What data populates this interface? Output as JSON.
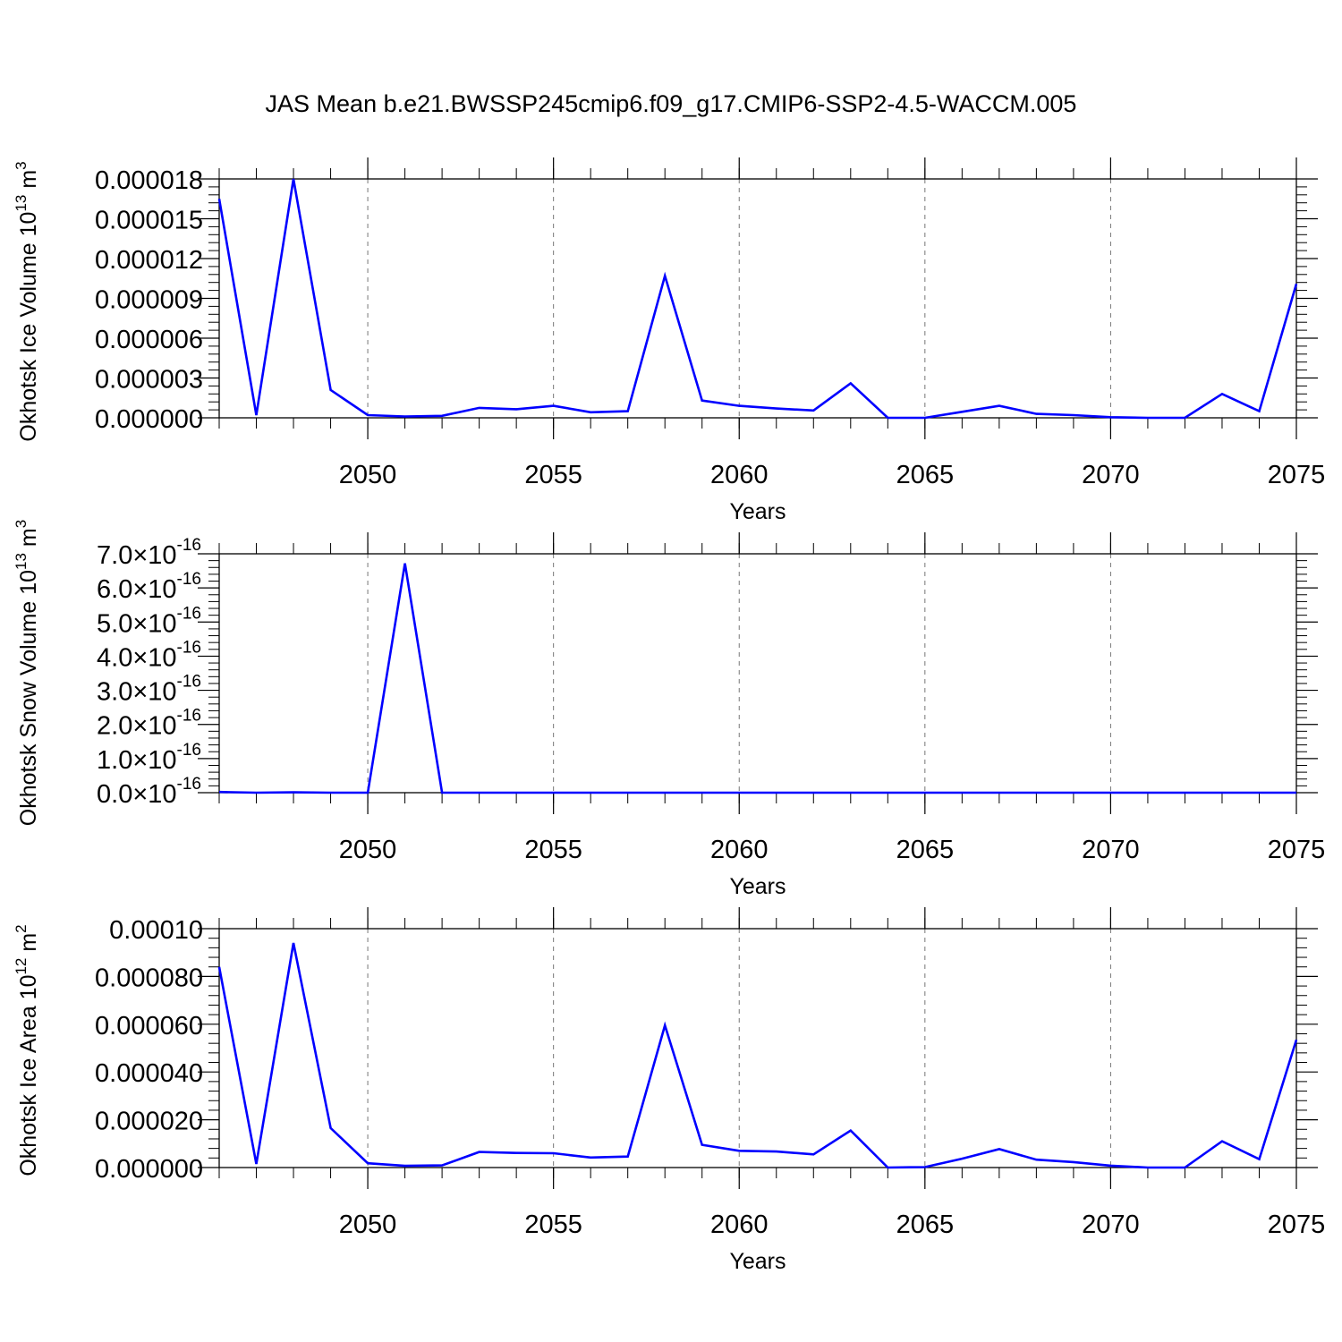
{
  "figure": {
    "title": "JAS Mean b.e21.BWSSP245cmip6.f09_g17.CMIP6-SSP2-4.5-WACCM.005",
    "line_color": "#0000ff"
  },
  "chart_data": [
    {
      "type": "line",
      "ylabel": "Okhotsk Ice Volume 10",
      "ylabel_sup": "13",
      "ylabel_unit": "m",
      "ylabel_unit_sup": "3",
      "xlabel": "Years",
      "xlim": [
        2046,
        2075
      ],
      "ylim": [
        0,
        1.8e-05
      ],
      "x_ticks": [
        2050,
        2055,
        2060,
        2065,
        2070,
        2075
      ],
      "x_tick_labels": [
        "2050",
        "2055",
        "2060",
        "2065",
        "2070",
        "2075"
      ],
      "y_ticks": [
        0,
        3e-06,
        6e-06,
        9e-06,
        1.2e-05,
        1.5e-05,
        1.8e-05
      ],
      "y_tick_labels": [
        "0.000000",
        "0.000003",
        "0.000006",
        "0.000009",
        "0.000012",
        "0.000015",
        "0.000018"
      ],
      "y_tick_exp_labels": [],
      "grid": "vertical dashed at major x ticks",
      "x": [
        2046,
        2047,
        2048,
        2049,
        2050,
        2051,
        2052,
        2053,
        2054,
        2055,
        2056,
        2057,
        2058,
        2059,
        2060,
        2061,
        2062,
        2063,
        2064,
        2065,
        2066,
        2067,
        2068,
        2069,
        2070,
        2071,
        2072,
        2073,
        2074,
        2075
      ],
      "y": [
        1.65e-05,
        2e-07,
        1.8e-05,
        2.1e-06,
        2e-07,
        1e-07,
        1.5e-07,
        7.5e-07,
        6.5e-07,
        9e-07,
        4.2e-07,
        5e-07,
        1.07e-05,
        1.3e-06,
        9e-07,
        7e-07,
        5.5e-07,
        2.6e-06,
        0.0,
        0.0,
        4.5e-07,
        9e-07,
        3e-07,
        2e-07,
        5e-08,
        0.0,
        0.0,
        1.8e-06,
        5e-07,
        1.01e-05
      ]
    },
    {
      "type": "line",
      "ylabel": "Okhotsk Snow Volume 10",
      "ylabel_sup": "13",
      "ylabel_unit": "m",
      "ylabel_unit_sup": "3",
      "xlabel": "Years",
      "xlim": [
        2046,
        2075
      ],
      "ylim": [
        0,
        7e-16
      ],
      "x_ticks": [
        2050,
        2055,
        2060,
        2065,
        2070,
        2075
      ],
      "x_tick_labels": [
        "2050",
        "2055",
        "2060",
        "2065",
        "2070",
        "2075"
      ],
      "y_ticks": [
        0,
        1e-16,
        2e-16,
        3e-16,
        4e-16,
        5e-16,
        6e-16,
        7e-16
      ],
      "y_tick_labels": [
        "0.0",
        "1.0",
        "2.0",
        "3.0",
        "4.0",
        "5.0",
        "6.0",
        "7.0"
      ],
      "y_tick_exp_labels": [
        "×10",
        "-16"
      ],
      "grid": "vertical dashed at major x ticks",
      "x": [
        2046,
        2047,
        2048,
        2049,
        2050,
        2051,
        2052,
        2053,
        2054,
        2055,
        2056,
        2057,
        2058,
        2059,
        2060,
        2061,
        2062,
        2063,
        2064,
        2065,
        2066,
        2067,
        2068,
        2069,
        2070,
        2071,
        2072,
        2073,
        2074,
        2075
      ],
      "y": [
        2e-18,
        0.0,
        1e-18,
        0.0,
        0.0,
        6.72e-16,
        0.0,
        0.0,
        0.0,
        0.0,
        0.0,
        0.0,
        0.0,
        0.0,
        0.0,
        0.0,
        0.0,
        0.0,
        0.0,
        0.0,
        0.0,
        0.0,
        0.0,
        0.0,
        0.0,
        0.0,
        0.0,
        0.0,
        0.0,
        0.0
      ]
    },
    {
      "type": "line",
      "ylabel": "Okhotsk Ice Area 10",
      "ylabel_sup": "12",
      "ylabel_unit": "m",
      "ylabel_unit_sup": "2",
      "xlabel": "Years",
      "xlim": [
        2046,
        2075
      ],
      "ylim": [
        0,
        0.0001
      ],
      "x_ticks": [
        2050,
        2055,
        2060,
        2065,
        2070,
        2075
      ],
      "x_tick_labels": [
        "2050",
        "2055",
        "2060",
        "2065",
        "2070",
        "2075"
      ],
      "y_ticks": [
        0,
        2e-05,
        4e-05,
        6e-05,
        8e-05,
        0.0001
      ],
      "y_tick_labels": [
        "0.000000",
        "0.000020",
        "0.000040",
        "0.000060",
        "0.000080",
        "0.00010"
      ],
      "y_tick_exp_labels": [],
      "grid": "vertical dashed at major x ticks",
      "x": [
        2046,
        2047,
        2048,
        2049,
        2050,
        2051,
        2052,
        2053,
        2054,
        2055,
        2056,
        2057,
        2058,
        2059,
        2060,
        2061,
        2062,
        2063,
        2064,
        2065,
        2066,
        2067,
        2068,
        2069,
        2070,
        2071,
        2072,
        2073,
        2074,
        2075
      ],
      "y": [
        8.4e-05,
        1.5e-06,
        9.4e-05,
        1.65e-05,
        1.8e-06,
        7e-07,
        9e-07,
        6.5e-06,
        6.1e-06,
        6e-06,
        4.2e-06,
        4.6e-06,
        5.95e-05,
        9.5e-06,
        7e-06,
        6.7e-06,
        5.5e-06,
        1.55e-05,
        0.0,
        2e-07,
        3.7e-06,
        7.7e-06,
        3.3e-06,
        2.3e-06,
        8e-07,
        0.0,
        0.0,
        1.1e-05,
        3.5e-06,
        5.35e-05
      ]
    }
  ]
}
